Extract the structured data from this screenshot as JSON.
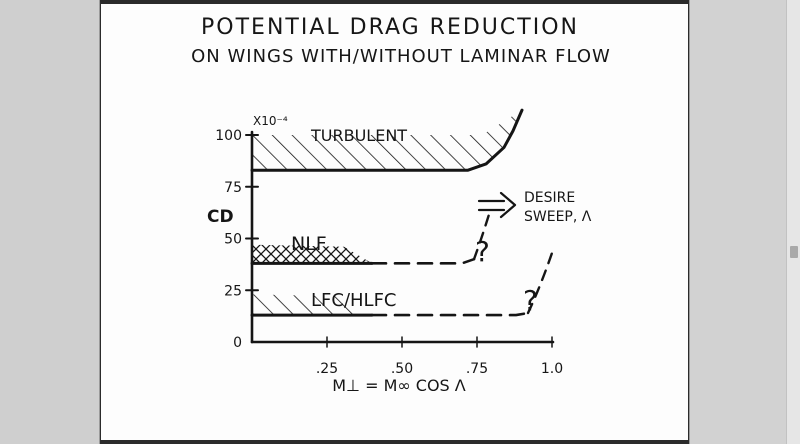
{
  "viewer": {
    "scroll_fraction": 0.57
  },
  "chart_data": {
    "type": "line",
    "title": "POTENTIAL DRAG REDUCTION",
    "subtitle": "ON WINGS WITH/WITHOUT LAMINAR FLOW",
    "xlabel": "M⊥ = M∞ COS Λ",
    "ylabel": "CD",
    "y_multiplier": "X10⁻⁴",
    "xlim": [
      0,
      1.0
    ],
    "ylim": [
      0,
      100
    ],
    "xticks": [
      0.25,
      0.5,
      0.75,
      1.0
    ],
    "xtick_labels": [
      ".25",
      ".50",
      ".75",
      "1.0"
    ],
    "yticks": [
      0,
      25,
      50,
      75,
      100
    ],
    "ytick_labels": [
      "0",
      "25",
      "50",
      "75",
      "100"
    ],
    "series": [
      {
        "name": "TURBULENT",
        "style": "solid",
        "hatch": "diagonal",
        "x": [
          0.0,
          0.72,
          0.78,
          0.84,
          0.87,
          0.9
        ],
        "y": [
          83,
          83,
          86,
          94,
          102,
          112
        ],
        "band_top": 100
      },
      {
        "name": "NLF",
        "style": "solid-then-dashed",
        "hatch": "cross",
        "solid_until": 0.4,
        "band_top": 47,
        "x": [
          0.0,
          0.4,
          0.7,
          0.74
        ],
        "y": [
          38,
          38,
          38,
          40
        ]
      },
      {
        "name": "LFC/HLFC",
        "style": "solid-then-dashed",
        "hatch": "diagonal",
        "solid_until": 0.4,
        "band_top": 23,
        "x": [
          0.0,
          0.4,
          0.88,
          0.92
        ],
        "y": [
          13,
          13,
          13,
          14
        ]
      }
    ],
    "annotations": [
      {
        "text": "DESIRE",
        "text2": "SWEEP, Λ"
      },
      {
        "text": "?",
        "near": "NLF"
      },
      {
        "text": "?",
        "near": "LFC/HLFC"
      }
    ]
  }
}
